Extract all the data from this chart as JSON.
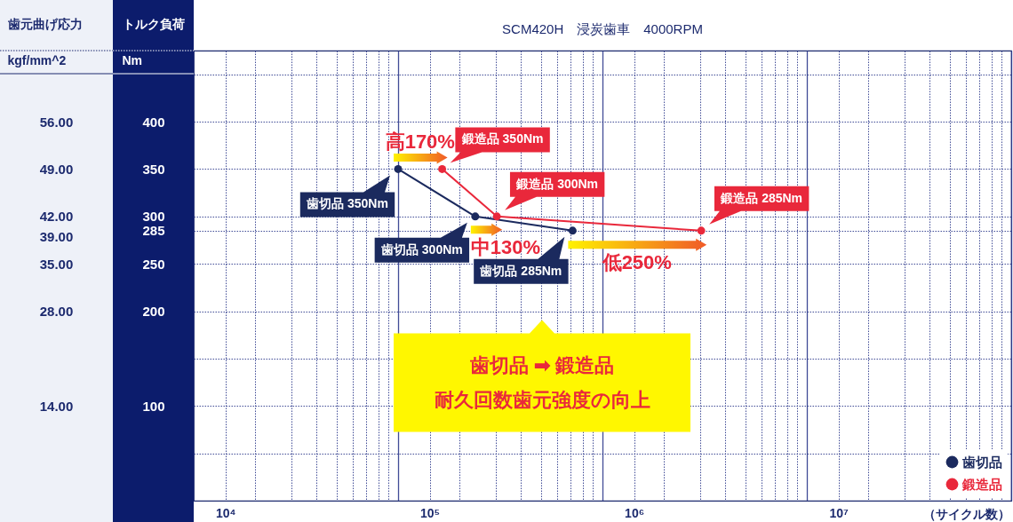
{
  "chart_data": {
    "type": "line",
    "title": "SCM420H　浸炭歯車　4000RPM",
    "xlabel": "（サイクル数）",
    "ylabel": "トルク負荷\nNm",
    "y2label": "歯元曲げ応力\nkgf/mm^2",
    "series": [
      {
        "name": "歯切品",
        "color": "#1b2a5e",
        "x": [
          70000,
          167000,
          500000
        ],
        "values": [
          350,
          300,
          285
        ],
        "value_labels": [
          "歯切品 350Nm",
          "歯切品 300Nm",
          "歯切品 285Nm"
        ]
      },
      {
        "name": "鍛造品",
        "color": "#e9283b",
        "x": [
          115000,
          213000,
          2130000
        ],
        "values": [
          350,
          300,
          285
        ],
        "value_labels": [
          "鍛造品 350Nm",
          "鍛造品 300Nm",
          "鍛造品 285Nm"
        ]
      }
    ],
    "log": "x",
    "xlim": [
      7000,
      70000000
    ],
    "xticks": [
      {
        "value": 10000,
        "label": "10⁴"
      },
      {
        "value": 14000,
        "label": null
      },
      {
        "value": 21000,
        "label": null
      },
      {
        "value": 28000,
        "label": null
      },
      {
        "value": 35000,
        "label": null
      },
      {
        "value": 42000,
        "label": null
      },
      {
        "value": 49000,
        "label": null
      },
      {
        "value": 56000,
        "label": null
      },
      {
        "value": 63000,
        "label": null
      },
      {
        "value": 70000,
        "label": null
      },
      {
        "value": 100000,
        "label": "10⁵"
      },
      {
        "value": 140000,
        "label": null
      },
      {
        "value": 210000,
        "label": null
      },
      {
        "value": 280000,
        "label": null
      },
      {
        "value": 350000,
        "label": null
      },
      {
        "value": 420000,
        "label": null
      },
      {
        "value": 490000,
        "label": null
      },
      {
        "value": 560000,
        "label": null
      },
      {
        "value": 630000,
        "label": null
      },
      {
        "value": 700000,
        "label": null
      },
      {
        "value": 1000000,
        "label": "10⁶"
      },
      {
        "value": 1400000,
        "label": null
      },
      {
        "value": 2100000,
        "label": null
      },
      {
        "value": 2800000,
        "label": null
      },
      {
        "value": 3500000,
        "label": null
      },
      {
        "value": 4200000,
        "label": null
      },
      {
        "value": 4900000,
        "label": null
      },
      {
        "value": 5600000,
        "label": null
      },
      {
        "value": 6300000,
        "label": null
      },
      {
        "value": 7000000,
        "label": null
      },
      {
        "value": 10000000,
        "label": "10⁷"
      },
      {
        "value": 14000000,
        "label": null
      },
      {
        "value": 21000000,
        "label": null
      },
      {
        "value": 28000000,
        "label": null
      },
      {
        "value": 35000000,
        "label": null
      },
      {
        "value": 42000000,
        "label": null
      },
      {
        "value": 49000000,
        "label": null
      },
      {
        "value": 56000000,
        "label": null
      },
      {
        "value": 63000000,
        "label": null
      },
      {
        "value": 70000000,
        "label": null
      }
    ],
    "ylim": [
      0,
      475
    ],
    "yticks": [
      {
        "value": 50,
        "label": null
      },
      100,
      {
        "value": 150,
        "label": null
      },
      200,
      250,
      285,
      300,
      350,
      400,
      {
        "value": 450,
        "label": null
      }
    ],
    "y2lim": [
      0,
      66.5
    ],
    "y2ticks": [
      {
        "value": 14,
        "label": "14.00"
      },
      {
        "value": 28,
        "label": "28.00"
      },
      {
        "value": 35,
        "label": "35.00"
      },
      {
        "value": 39,
        "label": "39.00"
      },
      {
        "value": 42,
        "label": "42.00"
      },
      {
        "value": 49,
        "label": "49.00"
      },
      {
        "value": 56,
        "label": "56.00"
      }
    ],
    "grid": true,
    "legend": "bottom right",
    "marker": "circle",
    "annotations": [
      "高170%",
      "中130%",
      "低250%",
      "歯切品 ➡ 鍛造品",
      "耐久回数歯元強度の向上"
    ]
  }
}
